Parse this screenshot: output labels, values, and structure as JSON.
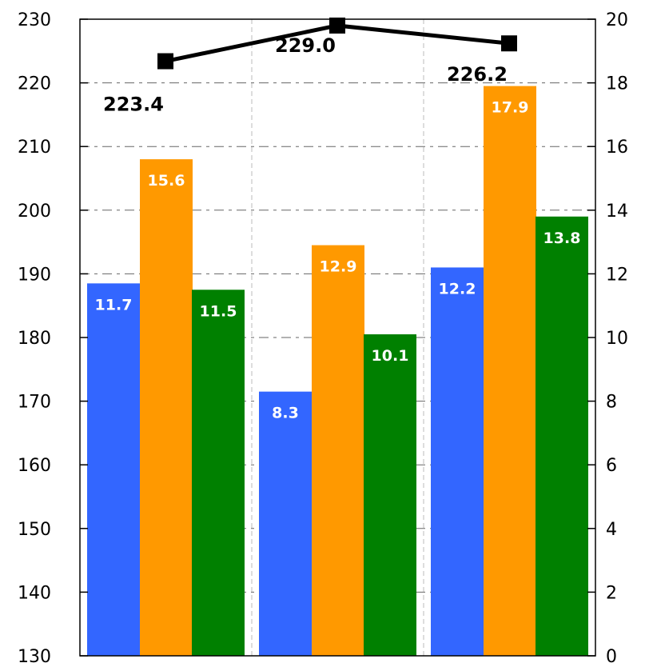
{
  "chart_data": {
    "type": "bar",
    "categories": [
      "",
      "",
      ""
    ],
    "left_axis": {
      "ylim": [
        130,
        230
      ],
      "ticks": [
        130,
        140,
        150,
        160,
        170,
        180,
        190,
        200,
        210,
        220,
        230
      ]
    },
    "right_axis": {
      "ylim": [
        0,
        20
      ],
      "ticks": [
        0,
        2,
        4,
        6,
        8,
        10,
        12,
        14,
        16,
        18,
        20
      ]
    },
    "grid": true,
    "series": [
      {
        "type": "bar",
        "axis": "right",
        "color": "#3366ff",
        "values": [
          11.7,
          8.3,
          12.2
        ]
      },
      {
        "type": "bar",
        "axis": "right",
        "color": "#ff9900",
        "values": [
          15.6,
          12.9,
          17.9
        ]
      },
      {
        "type": "bar",
        "axis": "right",
        "color": "#008000",
        "values": [
          11.5,
          10.1,
          13.8
        ]
      },
      {
        "type": "line",
        "axis": "left",
        "color": "#000000",
        "marker": "square",
        "values": [
          223.4,
          229.0,
          226.2
        ]
      }
    ],
    "labels": {
      "bars": [
        [
          "11.7",
          "8.3",
          "12.2"
        ],
        [
          "15.6",
          "12.9",
          "17.9"
        ],
        [
          "11.5",
          "10.1",
          "13.8"
        ]
      ],
      "line": [
        "223.4",
        "229.0",
        "226.2"
      ]
    }
  }
}
